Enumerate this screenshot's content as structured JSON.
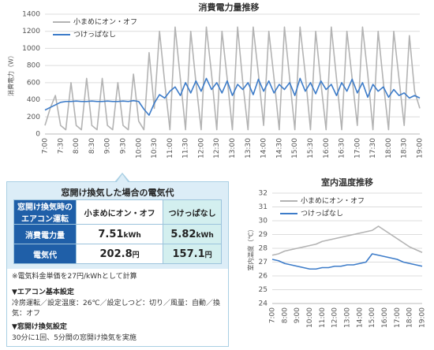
{
  "chart_data": [
    {
      "type": "line",
      "title": "消費電力量推移",
      "y_label": "消費電力（W）",
      "categories": [
        "7:00",
        null,
        null,
        "7:30",
        null,
        null,
        "8:00",
        null,
        null,
        "8:30",
        null,
        null,
        "9:00",
        null,
        null,
        "9:30",
        null,
        null,
        "10:00",
        null,
        null,
        "10:30",
        null,
        null,
        "11:00",
        null,
        null,
        "11:30",
        null,
        null,
        "12:00",
        null,
        null,
        "12:30",
        null,
        null,
        "13:00",
        null,
        null,
        "13:30",
        null,
        null,
        "14:00",
        null,
        null,
        "14:30",
        null,
        null,
        "15:00",
        null,
        null,
        "15:30",
        null,
        null,
        "16:00",
        null,
        null,
        "16:30",
        null,
        null,
        "17:00",
        null,
        null,
        "17:30",
        null,
        null,
        "18:00",
        null,
        null,
        "18:30",
        null,
        null,
        "19:00"
      ],
      "series": [
        {
          "name": "小まめにオン・オフ",
          "color": "#b3b3b3",
          "values": [
            100,
            300,
            450,
            100,
            50,
            600,
            100,
            50,
            650,
            100,
            50,
            650,
            100,
            50,
            600,
            100,
            50,
            700,
            150,
            50,
            950,
            300,
            1200,
            600,
            50,
            1250,
            650,
            50,
            1200,
            600,
            50,
            1250,
            700,
            50,
            1200,
            650,
            50,
            1250,
            600,
            50,
            1250,
            700,
            100,
            1200,
            650,
            50,
            1250,
            650,
            50,
            1250,
            700,
            50,
            1200,
            600,
            50,
            1250,
            650,
            50,
            1200,
            650,
            100,
            1250,
            700,
            50,
            1200,
            600,
            50,
            1200,
            650,
            100,
            1150,
            500,
            300
          ]
        },
        {
          "name": "つけっぱなし",
          "color": "#3d7cc9",
          "values": [
            280,
            310,
            340,
            370,
            380,
            380,
            385,
            380,
            380,
            385,
            380,
            380,
            385,
            380,
            380,
            385,
            380,
            390,
            380,
            290,
            220,
            360,
            460,
            420,
            500,
            550,
            450,
            600,
            480,
            620,
            500,
            650,
            520,
            600,
            480,
            620,
            450,
            580,
            520,
            600,
            460,
            640,
            500,
            620,
            480,
            580,
            520,
            600,
            450,
            650,
            500,
            600,
            470,
            620,
            520,
            580,
            450,
            600,
            500,
            640,
            480,
            600,
            430,
            580,
            500,
            550,
            430,
            520,
            450,
            480,
            420,
            450,
            420
          ]
        }
      ],
      "ylim": [
        0,
        1400
      ],
      "yticks": [
        0,
        200,
        400,
        600,
        800,
        1000,
        1200,
        1400
      ],
      "grid": true,
      "legend": "top-left"
    },
    {
      "type": "line",
      "title": "室内温度推移",
      "y_label": "室内温度（℃）",
      "categories": [
        "7:00",
        null,
        "8:00",
        null,
        "9:00",
        null,
        "10:00",
        null,
        "11:00",
        null,
        "12:00",
        null,
        "13:00",
        null,
        "14:00",
        null,
        "15:00",
        null,
        "16:00",
        null,
        "17:00",
        null,
        "18:00",
        null,
        "19:00"
      ],
      "series": [
        {
          "name": "小まめにオン・オフ",
          "color": "#b3b3b3",
          "values": [
            27.5,
            27.6,
            27.8,
            27.9,
            28.0,
            28.1,
            28.2,
            28.3,
            28.5,
            28.6,
            28.7,
            28.8,
            28.9,
            29.0,
            29.1,
            29.2,
            29.3,
            29.6,
            29.3,
            29.0,
            28.7,
            28.4,
            28.1,
            27.9,
            27.7
          ]
        },
        {
          "name": "つけっぱなし",
          "color": "#3d7cc9",
          "values": [
            27.2,
            27.1,
            26.9,
            26.8,
            26.7,
            26.6,
            26.5,
            26.5,
            26.6,
            26.6,
            26.7,
            26.7,
            26.8,
            26.8,
            26.9,
            27.0,
            27.6,
            27.5,
            27.4,
            27.3,
            27.2,
            27.0,
            26.9,
            26.8,
            26.7
          ]
        }
      ],
      "ylim": [
        24,
        32
      ],
      "yticks": [
        24,
        25,
        26,
        27,
        28,
        29,
        30,
        31,
        32
      ],
      "grid": true,
      "legend": "top-left"
    }
  ],
  "panel": {
    "title": "窓開け換気した場合の電気代",
    "table": {
      "header": [
        [
          "窓開け換気時の",
          "エアコン運転"
        ],
        "小まめにオン・オフ",
        "つけっぱなし"
      ],
      "rows": [
        {
          "label": "消費電力量",
          "cells": [
            {
              "number": 7.51,
              "unit": "kWh"
            },
            {
              "number": 5.82,
              "unit": "kWh"
            }
          ]
        },
        {
          "label": "電気代",
          "cells": [
            {
              "number": 202.8,
              "unit": "円"
            },
            {
              "number": 157.1,
              "unit": "円"
            }
          ]
        }
      ]
    },
    "note": "※電気料金単価を27円/kWhとして計算",
    "settings": [
      {
        "heading": "▼エアコン基本設定",
        "text": "冷房運転／設定温度：26℃／設定しつど：切り／風量：自動／換気：オフ"
      },
      {
        "heading": "▼窓開け換気設定",
        "text": "30分に1回、5分間の窓開け換気を実施"
      }
    ]
  }
}
